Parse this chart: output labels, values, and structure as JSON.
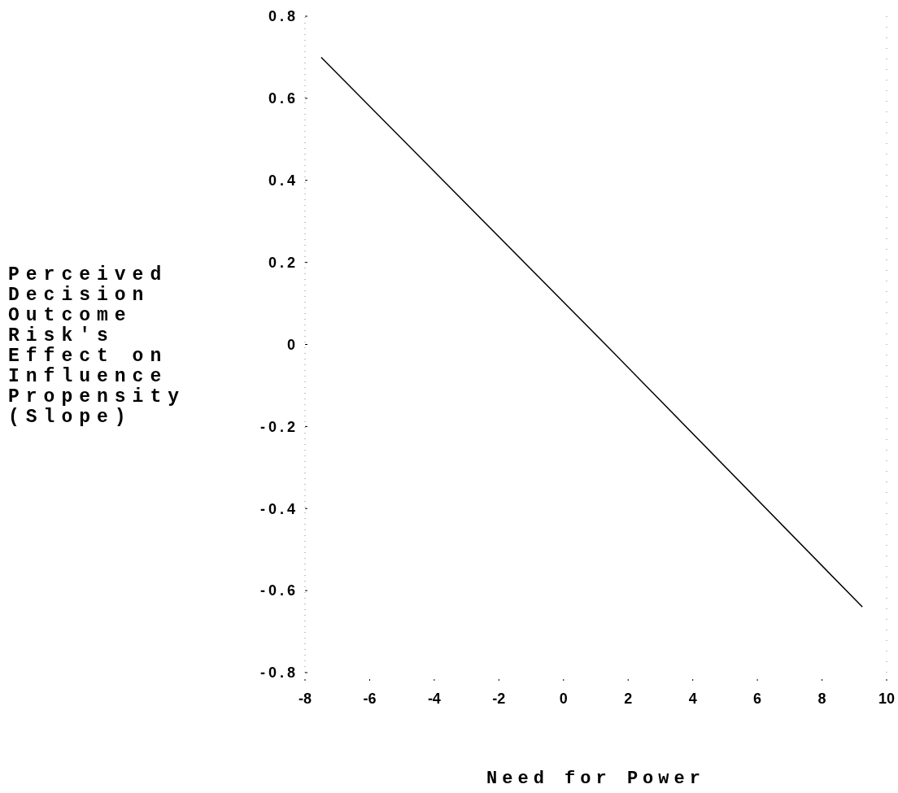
{
  "chart_data": {
    "type": "line",
    "xlabel": "Need for Power",
    "ylabel": "Perceived Decision Outcome Risk's Effect on Influence Propensity (Slope)",
    "series": [
      {
        "color": "#000000",
        "x": [
          -7.5,
          1.3,
          9.25
        ],
        "values": [
          0.7,
          0.0,
          -0.64
        ]
      }
    ],
    "xlim": [
      -8,
      10
    ],
    "xticks": [
      -8,
      -6,
      -4,
      -2,
      0,
      2,
      4,
      6,
      8,
      10
    ],
    "ylim": [
      -0.8,
      0.8
    ],
    "yticks": [
      {
        "value": -0.8,
        "label": "-0.8"
      },
      {
        "value": -0.6,
        "label": "-0.6"
      },
      {
        "value": -0.4,
        "label": "-0.4"
      },
      {
        "value": -0.2,
        "label": "-0.2"
      },
      0,
      {
        "value": 0.2,
        "label": "0.2"
      },
      {
        "value": 0.4,
        "label": "0.4"
      },
      {
        "value": 0.6,
        "label": "0.6"
      },
      {
        "value": 0.8,
        "label": "0.8"
      }
    ],
    "grid": false,
    "marker": "none",
    "line_style": "solid"
  }
}
